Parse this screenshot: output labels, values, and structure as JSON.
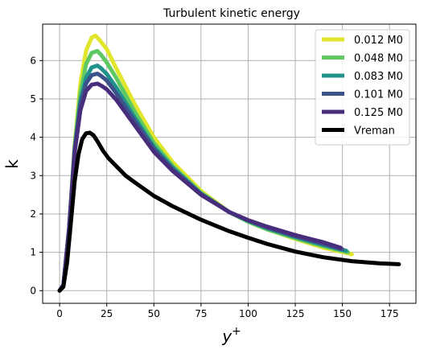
{
  "chart_data": {
    "type": "line",
    "title": "Turbulent kinetic energy",
    "xlabel_base": "y",
    "xlabel_sup": "+",
    "ylabel": "k",
    "xlim": [
      -9,
      189
    ],
    "ylim": [
      -0.33,
      6.95
    ],
    "xticks": [
      0,
      25,
      50,
      75,
      100,
      125,
      150,
      175
    ],
    "yticks": [
      0,
      1,
      2,
      3,
      4,
      5,
      6
    ],
    "grid": true,
    "legend_position": "top-right",
    "series": [
      {
        "name": "0.012 M0",
        "color": "#e1e52c",
        "width": 5,
        "x": [
          0,
          2,
          5,
          8,
          11,
          14,
          17,
          19,
          21,
          25,
          30,
          40,
          50,
          60,
          75,
          90,
          100,
          110,
          125,
          140,
          155
        ],
        "y": [
          0,
          0.15,
          1.6,
          3.8,
          5.4,
          6.25,
          6.6,
          6.65,
          6.55,
          6.3,
          5.8,
          4.85,
          4.0,
          3.35,
          2.6,
          2.05,
          1.8,
          1.6,
          1.35,
          1.12,
          0.95
        ]
      },
      {
        "name": "0.048 M0",
        "color": "#5ec962",
        "width": 5,
        "x": [
          0,
          2,
          5,
          8,
          11,
          14,
          17,
          20,
          22,
          25,
          30,
          40,
          50,
          60,
          75,
          90,
          100,
          110,
          125,
          140,
          153
        ],
        "y": [
          0,
          0.15,
          1.6,
          3.75,
          5.15,
          5.9,
          6.2,
          6.25,
          6.15,
          5.95,
          5.55,
          4.65,
          3.85,
          3.25,
          2.55,
          2.05,
          1.8,
          1.6,
          1.37,
          1.16,
          1.0
        ]
      },
      {
        "name": "0.083 M0",
        "color": "#21918c",
        "width": 5,
        "x": [
          0,
          2,
          5,
          8,
          11,
          14,
          17,
          20,
          22,
          25,
          30,
          40,
          50,
          60,
          75,
          90,
          100,
          110,
          125,
          140,
          152
        ],
        "y": [
          0,
          0.15,
          1.6,
          3.7,
          4.95,
          5.55,
          5.82,
          5.87,
          5.8,
          5.65,
          5.3,
          4.5,
          3.75,
          3.2,
          2.53,
          2.05,
          1.82,
          1.63,
          1.4,
          1.19,
          1.04
        ]
      },
      {
        "name": "0.101 M0",
        "color": "#3b528b",
        "width": 5,
        "x": [
          0,
          2,
          5,
          8,
          11,
          14,
          17,
          20,
          22,
          25,
          30,
          40,
          50,
          60,
          75,
          90,
          100,
          110,
          125,
          140,
          150
        ],
        "y": [
          0,
          0.15,
          1.6,
          3.65,
          4.85,
          5.4,
          5.62,
          5.66,
          5.6,
          5.48,
          5.15,
          4.42,
          3.7,
          3.17,
          2.52,
          2.05,
          1.83,
          1.65,
          1.42,
          1.22,
          1.08
        ]
      },
      {
        "name": "0.125 M0",
        "color": "#472d7b",
        "width": 5,
        "x": [
          0,
          2,
          5,
          8,
          11,
          14,
          17,
          20,
          22,
          25,
          30,
          40,
          50,
          60,
          75,
          90,
          100,
          110,
          125,
          140,
          149
        ],
        "y": [
          0,
          0.15,
          1.6,
          3.6,
          4.7,
          5.2,
          5.37,
          5.4,
          5.35,
          5.25,
          4.98,
          4.3,
          3.62,
          3.12,
          2.5,
          2.05,
          1.84,
          1.67,
          1.45,
          1.26,
          1.12
        ]
      },
      {
        "name": "Vreman",
        "color": "#000000",
        "width": 5,
        "x": [
          0,
          2,
          4,
          6,
          8,
          10,
          12,
          14,
          16,
          18,
          20,
          23,
          26,
          30,
          35,
          40,
          50,
          60,
          75,
          90,
          100,
          110,
          125,
          140,
          155,
          170,
          180
        ],
        "y": [
          0,
          0.1,
          0.75,
          1.8,
          2.85,
          3.55,
          3.95,
          4.1,
          4.12,
          4.05,
          3.9,
          3.65,
          3.45,
          3.25,
          3.0,
          2.82,
          2.47,
          2.2,
          1.85,
          1.55,
          1.38,
          1.22,
          1.02,
          0.87,
          0.77,
          0.71,
          0.69
        ]
      }
    ]
  }
}
